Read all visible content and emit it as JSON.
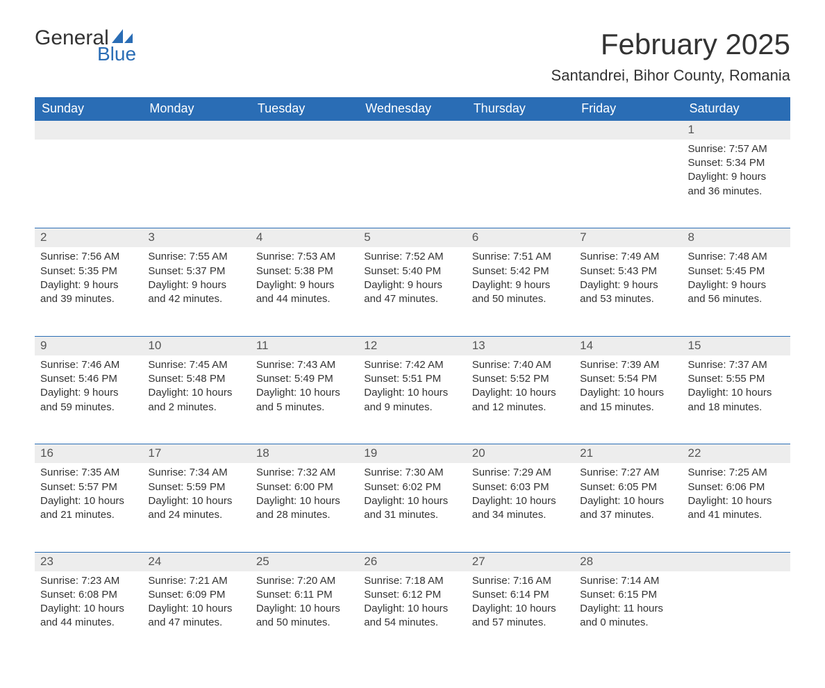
{
  "logo": {
    "word1": "General",
    "word2": "Blue"
  },
  "title": "February 2025",
  "location": "Santandrei, Bihor County, Romania",
  "colors": {
    "brand_blue": "#2a6db5",
    "header_bg": "#2a6db5",
    "row_gray": "#ededed"
  },
  "weekdays": [
    "Sunday",
    "Monday",
    "Tuesday",
    "Wednesday",
    "Thursday",
    "Friday",
    "Saturday"
  ],
  "first_day_index": 6,
  "days": [
    {
      "n": 1,
      "sunrise": "7:57 AM",
      "sunset": "5:34 PM",
      "daylight": "9 hours and 36 minutes."
    },
    {
      "n": 2,
      "sunrise": "7:56 AM",
      "sunset": "5:35 PM",
      "daylight": "9 hours and 39 minutes."
    },
    {
      "n": 3,
      "sunrise": "7:55 AM",
      "sunset": "5:37 PM",
      "daylight": "9 hours and 42 minutes."
    },
    {
      "n": 4,
      "sunrise": "7:53 AM",
      "sunset": "5:38 PM",
      "daylight": "9 hours and 44 minutes."
    },
    {
      "n": 5,
      "sunrise": "7:52 AM",
      "sunset": "5:40 PM",
      "daylight": "9 hours and 47 minutes."
    },
    {
      "n": 6,
      "sunrise": "7:51 AM",
      "sunset": "5:42 PM",
      "daylight": "9 hours and 50 minutes."
    },
    {
      "n": 7,
      "sunrise": "7:49 AM",
      "sunset": "5:43 PM",
      "daylight": "9 hours and 53 minutes."
    },
    {
      "n": 8,
      "sunrise": "7:48 AM",
      "sunset": "5:45 PM",
      "daylight": "9 hours and 56 minutes."
    },
    {
      "n": 9,
      "sunrise": "7:46 AM",
      "sunset": "5:46 PM",
      "daylight": "9 hours and 59 minutes."
    },
    {
      "n": 10,
      "sunrise": "7:45 AM",
      "sunset": "5:48 PM",
      "daylight": "10 hours and 2 minutes."
    },
    {
      "n": 11,
      "sunrise": "7:43 AM",
      "sunset": "5:49 PM",
      "daylight": "10 hours and 5 minutes."
    },
    {
      "n": 12,
      "sunrise": "7:42 AM",
      "sunset": "5:51 PM",
      "daylight": "10 hours and 9 minutes."
    },
    {
      "n": 13,
      "sunrise": "7:40 AM",
      "sunset": "5:52 PM",
      "daylight": "10 hours and 12 minutes."
    },
    {
      "n": 14,
      "sunrise": "7:39 AM",
      "sunset": "5:54 PM",
      "daylight": "10 hours and 15 minutes."
    },
    {
      "n": 15,
      "sunrise": "7:37 AM",
      "sunset": "5:55 PM",
      "daylight": "10 hours and 18 minutes."
    },
    {
      "n": 16,
      "sunrise": "7:35 AM",
      "sunset": "5:57 PM",
      "daylight": "10 hours and 21 minutes."
    },
    {
      "n": 17,
      "sunrise": "7:34 AM",
      "sunset": "5:59 PM",
      "daylight": "10 hours and 24 minutes."
    },
    {
      "n": 18,
      "sunrise": "7:32 AM",
      "sunset": "6:00 PM",
      "daylight": "10 hours and 28 minutes."
    },
    {
      "n": 19,
      "sunrise": "7:30 AM",
      "sunset": "6:02 PM",
      "daylight": "10 hours and 31 minutes."
    },
    {
      "n": 20,
      "sunrise": "7:29 AM",
      "sunset": "6:03 PM",
      "daylight": "10 hours and 34 minutes."
    },
    {
      "n": 21,
      "sunrise": "7:27 AM",
      "sunset": "6:05 PM",
      "daylight": "10 hours and 37 minutes."
    },
    {
      "n": 22,
      "sunrise": "7:25 AM",
      "sunset": "6:06 PM",
      "daylight": "10 hours and 41 minutes."
    },
    {
      "n": 23,
      "sunrise": "7:23 AM",
      "sunset": "6:08 PM",
      "daylight": "10 hours and 44 minutes."
    },
    {
      "n": 24,
      "sunrise": "7:21 AM",
      "sunset": "6:09 PM",
      "daylight": "10 hours and 47 minutes."
    },
    {
      "n": 25,
      "sunrise": "7:20 AM",
      "sunset": "6:11 PM",
      "daylight": "10 hours and 50 minutes."
    },
    {
      "n": 26,
      "sunrise": "7:18 AM",
      "sunset": "6:12 PM",
      "daylight": "10 hours and 54 minutes."
    },
    {
      "n": 27,
      "sunrise": "7:16 AM",
      "sunset": "6:14 PM",
      "daylight": "10 hours and 57 minutes."
    },
    {
      "n": 28,
      "sunrise": "7:14 AM",
      "sunset": "6:15 PM",
      "daylight": "11 hours and 0 minutes."
    }
  ],
  "labels": {
    "sunrise": "Sunrise:",
    "sunset": "Sunset:",
    "daylight": "Daylight:"
  }
}
